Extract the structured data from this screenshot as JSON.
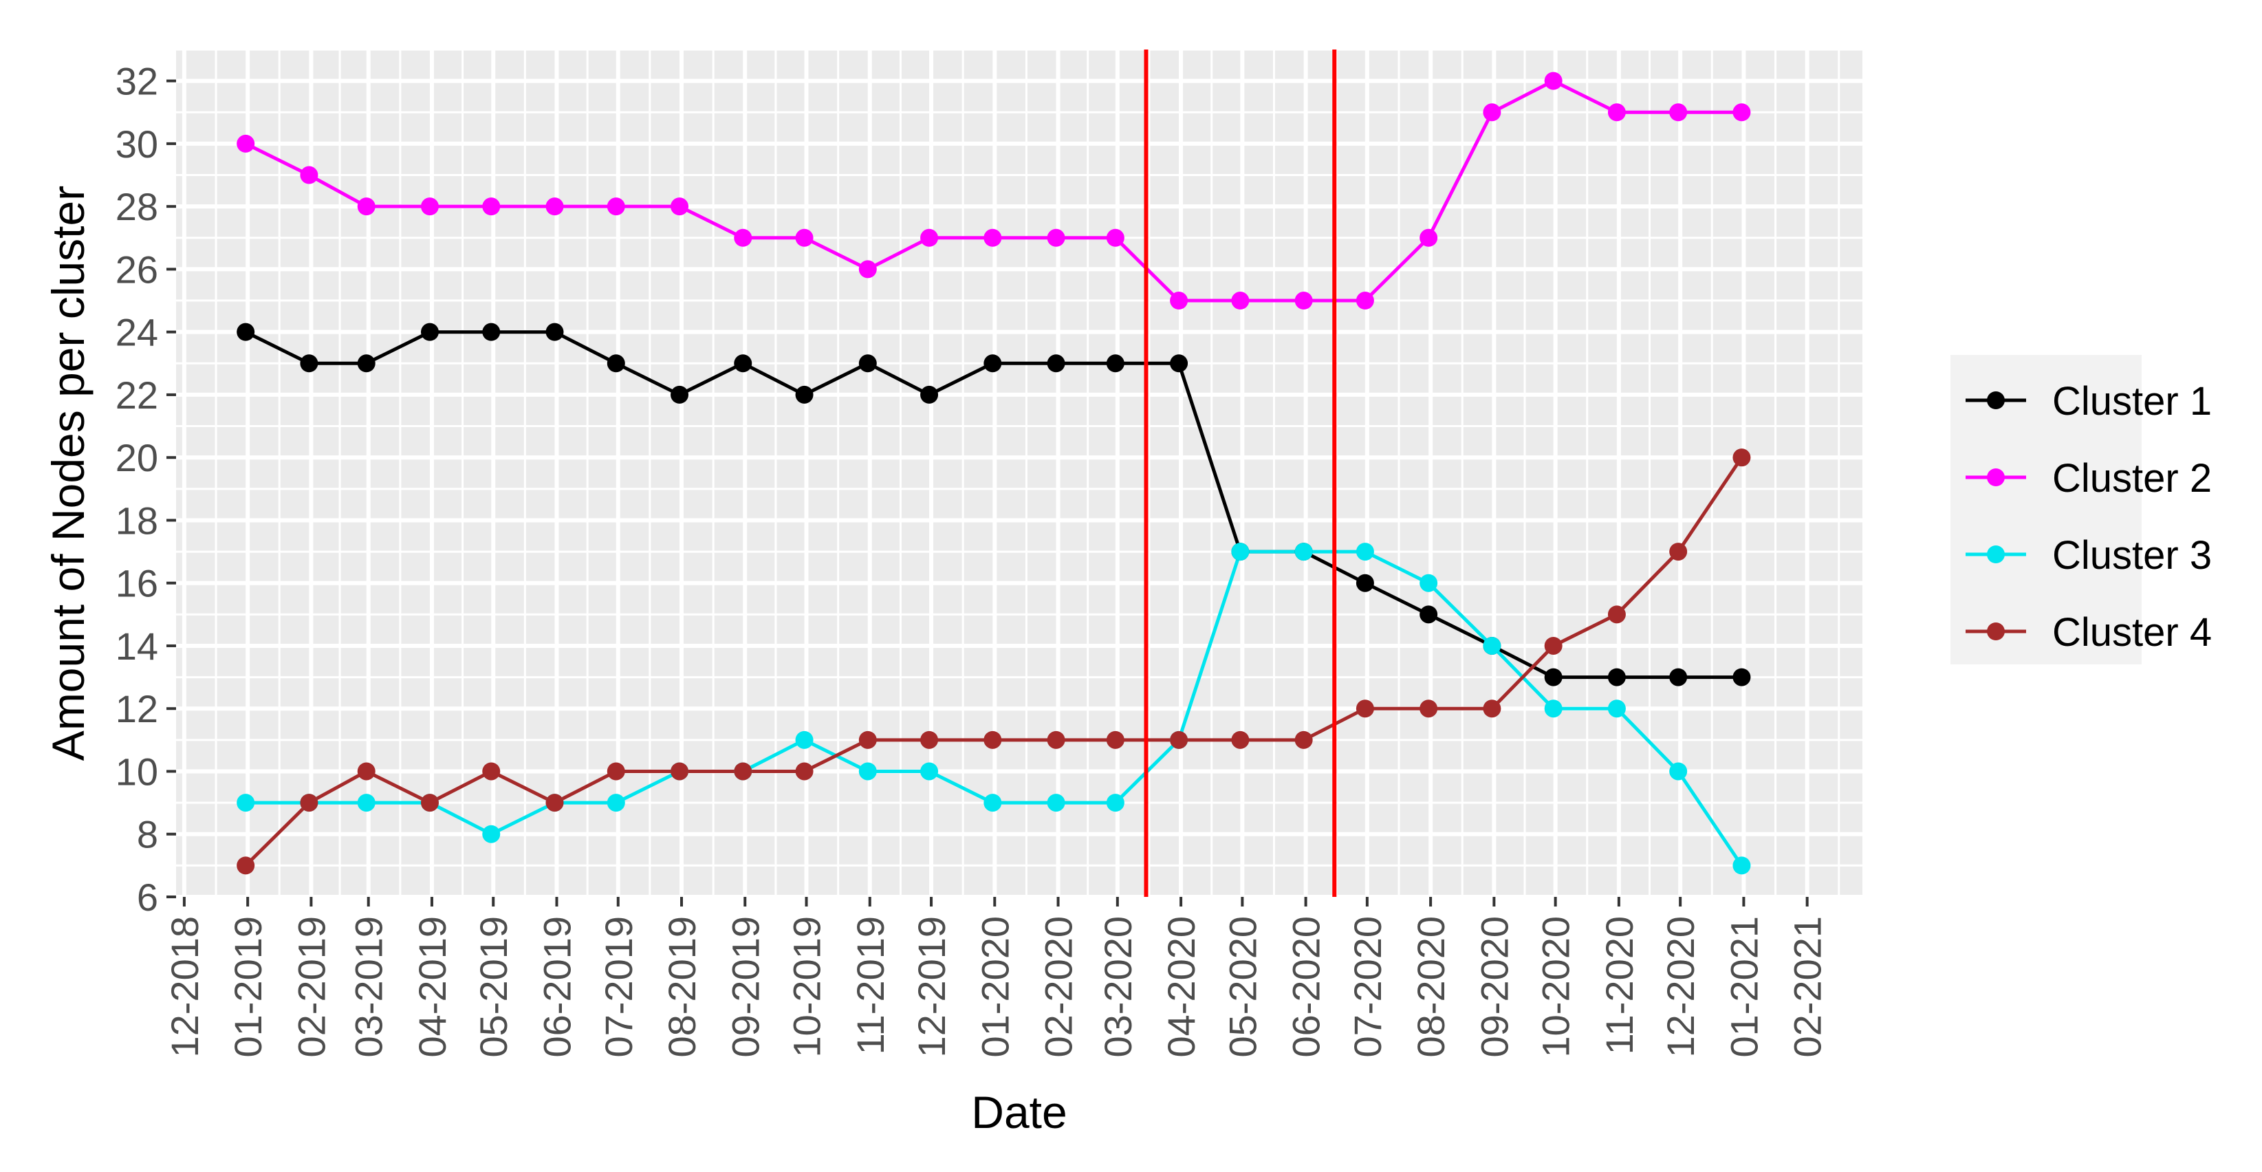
{
  "chart_data": {
    "type": "line",
    "xlabel": "Date",
    "ylabel": "Amount of Nodes per cluster",
    "ylim": [
      6,
      33
    ],
    "yticks": [
      6,
      8,
      10,
      12,
      14,
      16,
      18,
      20,
      22,
      24,
      26,
      28,
      30,
      32
    ],
    "xticks": [
      "12-2018",
      "01-2019",
      "02-2019",
      "03-2019",
      "04-2019",
      "05-2019",
      "06-2019",
      "07-2019",
      "08-2019",
      "09-2019",
      "10-2019",
      "11-2019",
      "12-2019",
      "01-2020",
      "02-2020",
      "03-2020",
      "04-2020",
      "05-2020",
      "06-2020",
      "07-2020",
      "08-2020",
      "09-2020",
      "10-2020",
      "11-2020",
      "12-2020",
      "01-2021",
      "02-2021"
    ],
    "x": [
      "2018-12-31",
      "2019-01-31",
      "2019-02-28",
      "2019-03-31",
      "2019-04-30",
      "2019-05-31",
      "2019-06-30",
      "2019-07-31",
      "2019-08-31",
      "2019-09-30",
      "2019-10-31",
      "2019-11-30",
      "2019-12-31",
      "2020-01-31",
      "2020-02-29",
      "2020-03-31",
      "2020-04-30",
      "2020-05-31",
      "2020-06-30",
      "2020-07-31",
      "2020-08-31",
      "2020-09-30",
      "2020-10-31",
      "2020-11-30",
      "2020-12-31"
    ],
    "series": [
      {
        "name": "Cluster 1",
        "color": "#000000",
        "values": [
          24,
          23,
          23,
          24,
          24,
          24,
          23,
          22,
          23,
          22,
          23,
          22,
          23,
          23,
          23,
          23,
          17,
          17,
          16,
          15,
          14,
          13,
          13,
          13,
          13
        ]
      },
      {
        "name": "Cluster 2",
        "color": "#ff00ff",
        "values": [
          30,
          29,
          28,
          28,
          28,
          28,
          28,
          28,
          27,
          27,
          26,
          27,
          27,
          27,
          27,
          25,
          25,
          25,
          25,
          27,
          31,
          32,
          31,
          31,
          31
        ]
      },
      {
        "name": "Cluster 3",
        "color": "#00e5ee",
        "values": [
          9,
          9,
          9,
          9,
          8,
          9,
          9,
          10,
          10,
          11,
          10,
          10,
          9,
          9,
          9,
          11,
          17,
          17,
          17,
          16,
          14,
          12,
          12,
          10,
          7
        ]
      },
      {
        "name": "Cluster 4",
        "color": "#a52a2a",
        "values": [
          7,
          9,
          10,
          9,
          10,
          9,
          10,
          10,
          10,
          10,
          11,
          11,
          11,
          11,
          11,
          11,
          11,
          11,
          12,
          12,
          12,
          14,
          15,
          17,
          20
        ]
      }
    ],
    "vlines": [
      {
        "x": "2020-03-15",
        "color": "#ff0000"
      },
      {
        "x": "2020-06-15",
        "color": "#ff0000"
      }
    ],
    "legend_position": "right",
    "grid": true,
    "panel_background": "#ebebeb"
  }
}
